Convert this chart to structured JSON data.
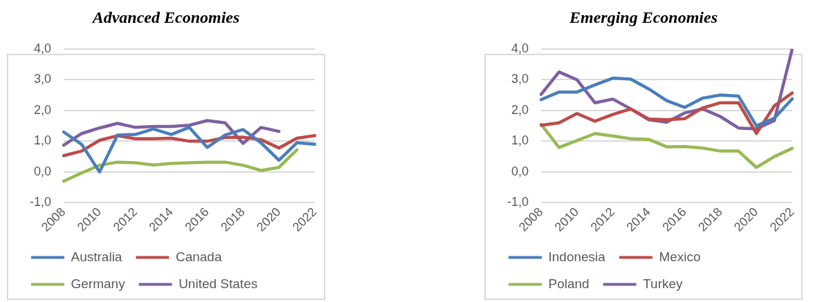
{
  "chart_data": [
    {
      "type": "line",
      "title": "Advanced Economies",
      "categories": [
        "2008",
        null,
        "2010",
        null,
        "2012",
        null,
        "2014",
        null,
        "2016",
        null,
        "2018",
        null,
        "2020",
        null,
        "2022"
      ],
      "series": [
        {
          "name": "Australia",
          "color": "#4a7ebb",
          "values": [
            1.3,
            0.9,
            0.0,
            1.2,
            1.22,
            1.4,
            1.22,
            1.45,
            0.8,
            1.2,
            1.38,
            0.95,
            0.38,
            0.95,
            0.9
          ]
        },
        {
          "name": "Canada",
          "color": "#be4b48",
          "values": [
            0.53,
            0.68,
            1.03,
            1.18,
            1.08,
            1.08,
            1.1,
            1.0,
            1.0,
            1.12,
            1.13,
            1.05,
            0.78,
            1.1,
            1.18
          ]
        },
        {
          "name": "Germany",
          "color": "#98b954",
          "values": [
            -0.3,
            -0.03,
            0.22,
            0.32,
            0.3,
            0.23,
            0.28,
            0.3,
            0.32,
            0.32,
            0.22,
            0.05,
            0.15,
            0.72,
            null
          ]
        },
        {
          "name": "United States",
          "color": "#7d60a0",
          "values": [
            0.87,
            1.25,
            1.43,
            1.58,
            1.45,
            1.48,
            1.48,
            1.52,
            1.67,
            1.6,
            0.93,
            1.45,
            1.32,
            null,
            null
          ]
        }
      ],
      "ylim": [
        -1,
        4
      ],
      "yticks": [
        {
          "value": -1,
          "label": "-1,0"
        },
        {
          "value": 0,
          "label": "0,0"
        },
        {
          "value": 1,
          "label": "1,0"
        },
        {
          "value": 2,
          "label": "2,0"
        },
        {
          "value": 3,
          "label": "3,0"
        },
        {
          "value": 4,
          "label": "4,0"
        }
      ],
      "grid": "y",
      "legend": "bottom",
      "marker": "none",
      "line_style": "solid"
    },
    {
      "type": "line",
      "title": "Emerging Economies",
      "categories": [
        "2008",
        null,
        "2010",
        null,
        "2012",
        null,
        "2014",
        null,
        "2016",
        null,
        "2018",
        null,
        "2020",
        null,
        "2022"
      ],
      "series": [
        {
          "name": "Indonesia",
          "color": "#4a7ebb",
          "values": [
            2.35,
            2.6,
            2.6,
            2.83,
            3.05,
            3.02,
            2.7,
            2.32,
            2.1,
            2.4,
            2.5,
            2.47,
            1.5,
            1.75,
            2.38
          ]
        },
        {
          "name": "Mexico",
          "color": "#be4b48",
          "values": [
            1.52,
            1.6,
            1.9,
            1.65,
            1.87,
            2.05,
            1.72,
            1.7,
            1.73,
            2.08,
            2.25,
            2.25,
            1.25,
            2.15,
            2.57
          ]
        },
        {
          "name": "Poland",
          "color": "#98b954",
          "values": [
            1.55,
            0.8,
            1.02,
            1.25,
            1.17,
            1.08,
            1.06,
            0.82,
            0.83,
            0.78,
            0.68,
            0.68,
            0.15,
            0.5,
            0.77
          ]
        },
        {
          "name": "Turkey",
          "color": "#7d60a0",
          "values": [
            2.52,
            3.25,
            3.0,
            2.25,
            2.37,
            2.05,
            1.7,
            1.62,
            1.92,
            2.05,
            1.8,
            1.43,
            1.4,
            1.67,
            4.0
          ]
        }
      ],
      "ylim": [
        -1,
        4
      ],
      "yticks": [
        {
          "value": -1,
          "label": "-1,0"
        },
        {
          "value": 0,
          "label": "0,0"
        },
        {
          "value": 1,
          "label": "1,0"
        },
        {
          "value": 2,
          "label": "2,0"
        },
        {
          "value": 3,
          "label": "3,0"
        },
        {
          "value": 4,
          "label": "4,0"
        }
      ],
      "grid": "y",
      "legend": "bottom",
      "marker": "none",
      "line_style": "solid"
    }
  ]
}
